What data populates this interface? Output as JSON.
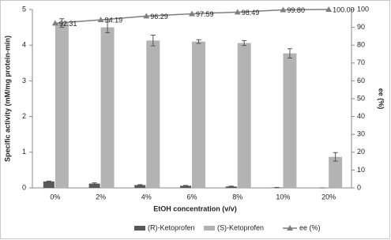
{
  "chart_data": {
    "type": "bar_line",
    "categories": [
      "0%",
      "2%",
      "4%",
      "6%",
      "8%",
      "10%",
      "20%"
    ],
    "x_label": "EtOH concentration (v/v)",
    "y_label": "Specific activity (mM/mg protein-min)",
    "y2_label": "ee (%)",
    "ylim": [
      0,
      5
    ],
    "yticks": [
      0,
      1,
      2,
      3,
      4,
      5
    ],
    "y2lim": [
      0,
      100
    ],
    "y2ticks": [
      0,
      10,
      20,
      30,
      40,
      50,
      60,
      70,
      80,
      90,
      100
    ],
    "series": [
      {
        "name": "(R)-Ketoprofen",
        "type": "bar",
        "color": "#595959",
        "values": [
          0.18,
          0.12,
          0.08,
          0.06,
          0.04,
          0.01,
          0
        ],
        "errors": [
          0.01,
          0.02,
          0.01,
          0.01,
          0.01,
          0.005,
          0
        ]
      },
      {
        "name": "(S)-Ketoprofen",
        "type": "bar",
        "color": "#b3b3b3",
        "values": [
          4.62,
          4.5,
          4.13,
          4.1,
          4.06,
          3.77,
          0.87
        ],
        "errors": [
          0.12,
          0.15,
          0.15,
          0.05,
          0.07,
          0.13,
          0.12
        ]
      },
      {
        "name": "ee (%)",
        "type": "line",
        "axis": "y2",
        "color": "#7f7f7f",
        "values": [
          92.31,
          94.19,
          96.29,
          97.59,
          98.49,
          99.8,
          100
        ],
        "value_labels": [
          "92.31",
          "94.19",
          "96.29",
          "97.59",
          "98.49",
          "99.80",
          "100.00"
        ]
      }
    ]
  }
}
